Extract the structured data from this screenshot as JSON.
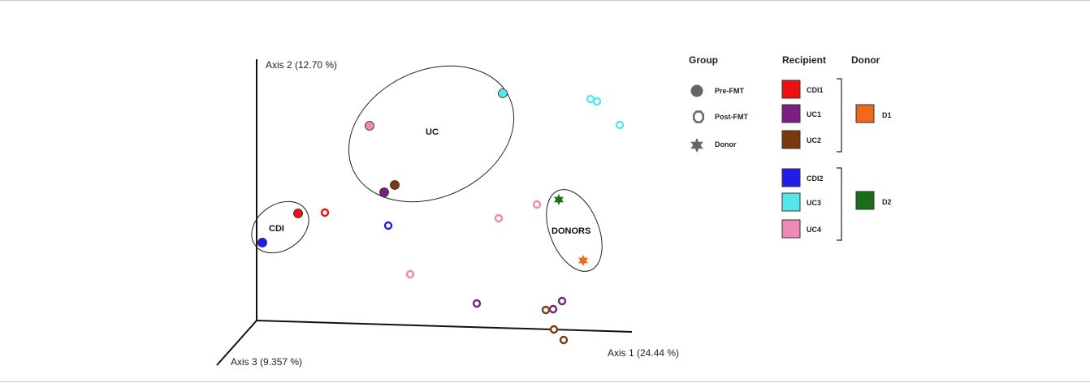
{
  "chart_data": {
    "type": "scatter",
    "axes": {
      "x_label": "Axis 1 (24.44 %)",
      "y_label": "Axis 2 (12.70 %)",
      "z_label": "Axis 3 (9.357 %)"
    },
    "clusters": [
      {
        "label": "UC"
      },
      {
        "label": "CDI"
      },
      {
        "label": "DONORS"
      }
    ],
    "colors": {
      "CDI1": "#ee1111",
      "UC1": "#7a1f80",
      "UC2": "#7a3a10",
      "CDI2": "#1e1ee8",
      "UC3": "#55e6ea",
      "UC4": "#ee88b8",
      "D1": "#ee6a1a",
      "D2": "#1a6e1a",
      "legend_shape": "#666666"
    },
    "legend": {
      "group_title": "Group",
      "recipient_title": "Recipient",
      "donor_title": "Donor",
      "groups": [
        {
          "label": "Pre-FMT",
          "shape": "circle-filled"
        },
        {
          "label": "Post-FMT",
          "shape": "circle-open"
        },
        {
          "label": "Donor",
          "shape": "star"
        }
      ],
      "recipients": [
        "CDI1",
        "UC1",
        "UC2",
        "CDI2",
        "UC3",
        "UC4"
      ],
      "donors": [
        {
          "label": "D1",
          "recipients": [
            "CDI1",
            "UC1",
            "UC2"
          ]
        },
        {
          "label": "D2",
          "recipients": [
            "CDI2",
            "UC3",
            "UC4"
          ]
        }
      ]
    },
    "points": [
      {
        "subject": "UC3",
        "group": "Pre-FMT"
      },
      {
        "subject": "UC4",
        "group": "Pre-FMT"
      },
      {
        "subject": "UC2",
        "group": "Pre-FMT"
      },
      {
        "subject": "UC1",
        "group": "Pre-FMT"
      },
      {
        "subject": "CDI1",
        "group": "Pre-FMT"
      },
      {
        "subject": "CDI2",
        "group": "Pre-FMT"
      },
      {
        "subject": "UC3",
        "group": "Post-FMT"
      },
      {
        "subject": "UC3",
        "group": "Post-FMT"
      },
      {
        "subject": "UC3",
        "group": "Post-FMT"
      },
      {
        "subject": "CDI1",
        "group": "Post-FMT"
      },
      {
        "subject": "CDI2",
        "group": "Post-FMT"
      },
      {
        "subject": "UC4",
        "group": "Post-FMT"
      },
      {
        "subject": "UC4",
        "group": "Post-FMT"
      },
      {
        "subject": "UC4",
        "group": "Post-FMT"
      },
      {
        "subject": "UC1",
        "group": "Post-FMT"
      },
      {
        "subject": "UC1",
        "group": "Post-FMT"
      },
      {
        "subject": "UC1",
        "group": "Post-FMT"
      },
      {
        "subject": "UC2",
        "group": "Post-FMT"
      },
      {
        "subject": "UC2",
        "group": "Post-FMT"
      },
      {
        "subject": "UC2",
        "group": "Post-FMT"
      },
      {
        "subject": "D2",
        "group": "Donor"
      },
      {
        "subject": "D1",
        "group": "Donor"
      }
    ]
  }
}
